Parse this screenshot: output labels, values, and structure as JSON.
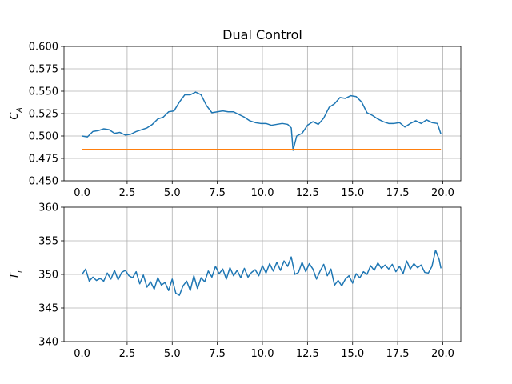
{
  "chart_data": [
    {
      "type": "line",
      "title": "Dual Control",
      "ylabel_main": "C",
      "ylabel_sub": "A",
      "xlabel": "",
      "xlim": [
        -1.0,
        21.0
      ],
      "ylim": [
        0.45,
        0.6
      ],
      "xticks": [
        "0.0",
        "2.5",
        "5.0",
        "7.5",
        "10.0",
        "12.5",
        "15.0",
        "17.5",
        "20.0"
      ],
      "xtick_values": [
        0,
        2.5,
        5,
        7.5,
        10,
        12.5,
        15,
        17.5,
        20
      ],
      "yticks": [
        "0.450",
        "0.475",
        "0.500",
        "0.525",
        "0.550",
        "0.575",
        "0.600"
      ],
      "ytick_values": [
        0.45,
        0.475,
        0.5,
        0.525,
        0.55,
        0.575,
        0.6
      ],
      "grid": true,
      "series": [
        {
          "color": "#1f77b4",
          "x": [
            0.0,
            0.3,
            0.6,
            0.9,
            1.2,
            1.5,
            1.8,
            2.1,
            2.4,
            2.7,
            3.0,
            3.3,
            3.6,
            3.9,
            4.2,
            4.5,
            4.8,
            5.1,
            5.4,
            5.7,
            6.0,
            6.3,
            6.6,
            6.9,
            7.2,
            7.5,
            7.8,
            8.1,
            8.4,
            8.7,
            9.0,
            9.3,
            9.6,
            9.9,
            10.2,
            10.5,
            10.8,
            11.1,
            11.4,
            11.6,
            11.7,
            11.9,
            12.2,
            12.5,
            12.8,
            13.1,
            13.4,
            13.7,
            14.0,
            14.3,
            14.6,
            14.9,
            15.2,
            15.5,
            15.8,
            16.1,
            16.4,
            16.7,
            17.0,
            17.3,
            17.6,
            17.9,
            18.2,
            18.5,
            18.8,
            19.1,
            19.4,
            19.7,
            19.9
          ],
          "y": [
            0.5,
            0.499,
            0.505,
            0.506,
            0.508,
            0.507,
            0.503,
            0.504,
            0.501,
            0.502,
            0.505,
            0.507,
            0.509,
            0.513,
            0.519,
            0.521,
            0.527,
            0.528,
            0.538,
            0.546,
            0.546,
            0.549,
            0.546,
            0.534,
            0.526,
            0.527,
            0.528,
            0.527,
            0.527,
            0.524,
            0.521,
            0.517,
            0.515,
            0.514,
            0.514,
            0.512,
            0.513,
            0.514,
            0.513,
            0.509,
            0.484,
            0.5,
            0.503,
            0.512,
            0.516,
            0.513,
            0.52,
            0.532,
            0.536,
            0.543,
            0.542,
            0.545,
            0.544,
            0.538,
            0.526,
            0.523,
            0.519,
            0.516,
            0.514,
            0.514,
            0.515,
            0.51,
            0.514,
            0.517,
            0.514,
            0.518,
            0.515,
            0.514,
            0.502
          ]
        },
        {
          "color": "#ff7f0e",
          "x": [
            0.0,
            19.9
          ],
          "y": [
            0.485,
            0.485
          ]
        }
      ]
    },
    {
      "type": "line",
      "title": "",
      "ylabel_main": "T",
      "ylabel_sub": "r",
      "xlabel": "",
      "xlim": [
        -1.0,
        21.0
      ],
      "ylim": [
        340,
        360
      ],
      "xticks": [
        "0.0",
        "2.5",
        "5.0",
        "7.5",
        "10.0",
        "12.5",
        "15.0",
        "17.5",
        "20.0"
      ],
      "xtick_values": [
        0,
        2.5,
        5,
        7.5,
        10,
        12.5,
        15,
        17.5,
        20
      ],
      "yticks": [
        "340",
        "345",
        "350",
        "355",
        "360"
      ],
      "ytick_values": [
        340,
        345,
        350,
        355,
        360
      ],
      "grid": true,
      "series": [
        {
          "color": "#1f77b4",
          "x": [
            0.0,
            0.2,
            0.4,
            0.6,
            0.8,
            1.0,
            1.2,
            1.4,
            1.6,
            1.8,
            2.0,
            2.2,
            2.4,
            2.6,
            2.8,
            3.0,
            3.2,
            3.4,
            3.6,
            3.8,
            4.0,
            4.2,
            4.4,
            4.6,
            4.8,
            5.0,
            5.2,
            5.4,
            5.6,
            5.8,
            6.0,
            6.2,
            6.4,
            6.6,
            6.8,
            7.0,
            7.2,
            7.4,
            7.6,
            7.8,
            8.0,
            8.2,
            8.4,
            8.6,
            8.8,
            9.0,
            9.2,
            9.4,
            9.6,
            9.8,
            10.0,
            10.2,
            10.4,
            10.6,
            10.8,
            11.0,
            11.2,
            11.4,
            11.6,
            11.8,
            12.0,
            12.2,
            12.4,
            12.6,
            12.8,
            13.0,
            13.2,
            13.4,
            13.6,
            13.8,
            14.0,
            14.2,
            14.4,
            14.6,
            14.8,
            15.0,
            15.2,
            15.4,
            15.6,
            15.8,
            16.0,
            16.2,
            16.4,
            16.6,
            16.8,
            17.0,
            17.2,
            17.4,
            17.6,
            17.8,
            18.0,
            18.2,
            18.4,
            18.6,
            18.8,
            19.0,
            19.2,
            19.4,
            19.6,
            19.8,
            19.9
          ],
          "y": [
            350.0,
            350.8,
            349.0,
            349.6,
            349.1,
            349.4,
            349.0,
            350.2,
            349.3,
            350.6,
            349.2,
            350.3,
            350.6,
            349.8,
            349.5,
            350.4,
            348.6,
            349.9,
            348.1,
            348.9,
            347.8,
            349.5,
            348.4,
            348.8,
            347.6,
            349.3,
            347.2,
            346.9,
            348.3,
            349.0,
            347.6,
            349.8,
            347.9,
            349.5,
            348.9,
            350.5,
            349.6,
            351.2,
            350.1,
            350.8,
            349.3,
            351.0,
            349.8,
            350.6,
            349.5,
            350.9,
            349.6,
            350.3,
            350.7,
            349.8,
            351.3,
            350.2,
            351.6,
            350.5,
            351.8,
            350.6,
            352.0,
            351.2,
            352.6,
            350.0,
            350.3,
            351.8,
            350.4,
            351.6,
            350.8,
            349.3,
            350.5,
            351.5,
            349.8,
            350.8,
            348.4,
            349.1,
            348.3,
            349.3,
            349.8,
            348.7,
            350.1,
            349.5,
            350.4,
            350.0,
            351.3,
            350.6,
            351.7,
            350.9,
            351.4,
            350.8,
            351.5,
            350.4,
            351.2,
            350.1,
            352.0,
            350.8,
            351.6,
            351.0,
            351.4,
            350.3,
            350.2,
            351.2,
            353.6,
            352.2,
            350.9
          ]
        }
      ]
    }
  ]
}
